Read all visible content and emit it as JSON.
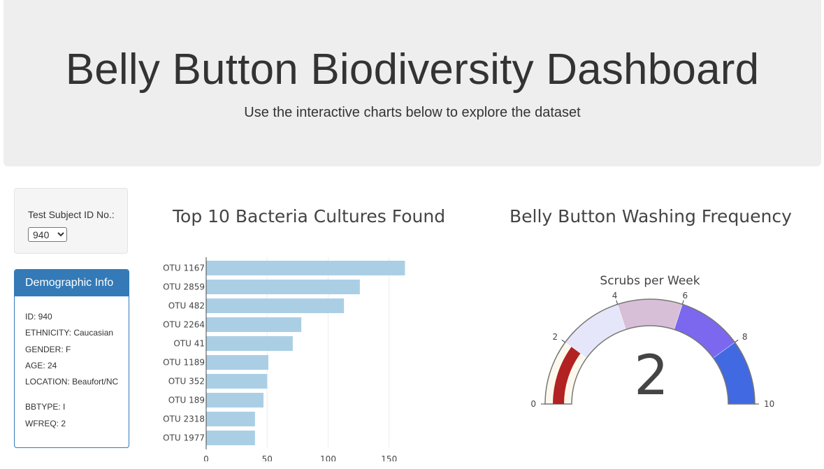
{
  "header": {
    "title": "Belly Button Biodiversity Dashboard",
    "subtitle": "Use the interactive charts below to explore the dataset"
  },
  "selector": {
    "label": "Test Subject ID No.:",
    "selected": "940"
  },
  "demographics": {
    "heading": "Demographic Info",
    "rows": [
      "ID: 940",
      "ETHNICITY: Caucasian",
      "GENDER: F",
      "AGE: 24",
      "LOCATION: Beaufort/NC",
      "BBTYPE: I",
      "WFREQ: 2"
    ]
  },
  "colors": {
    "bar": "#aacfe5",
    "panel_accent": "#337ab7",
    "gauge_bands": [
      "#fdf8ee",
      "#e6e6fa",
      "#d8bfd8",
      "#7b68ee",
      "#4169e1"
    ],
    "gauge_value": "#b22222"
  },
  "chart_data": [
    {
      "type": "bar",
      "orientation": "horizontal",
      "title": "Top 10 Bacteria Cultures Found",
      "categories": [
        "OTU 1167",
        "OTU 2859",
        "OTU 482",
        "OTU 2264",
        "OTU 41",
        "OTU 1189",
        "OTU 352",
        "OTU 189",
        "OTU 2318",
        "OTU 1977"
      ],
      "values": [
        163,
        126,
        113,
        78,
        71,
        51,
        50,
        47,
        40,
        40
      ],
      "xlim": [
        0,
        175
      ],
      "xticks": [
        0,
        50,
        100,
        150
      ],
      "grid": true
    },
    {
      "type": "gauge",
      "title": "Belly Button Washing Frequency",
      "subtitle": "Scrubs per Week",
      "value": 2,
      "range": [
        0,
        10
      ],
      "ticks": [
        0,
        2,
        4,
        6,
        8,
        10
      ],
      "bands": [
        [
          0,
          2
        ],
        [
          2,
          4
        ],
        [
          4,
          6
        ],
        [
          6,
          8
        ],
        [
          8,
          10
        ]
      ]
    }
  ]
}
